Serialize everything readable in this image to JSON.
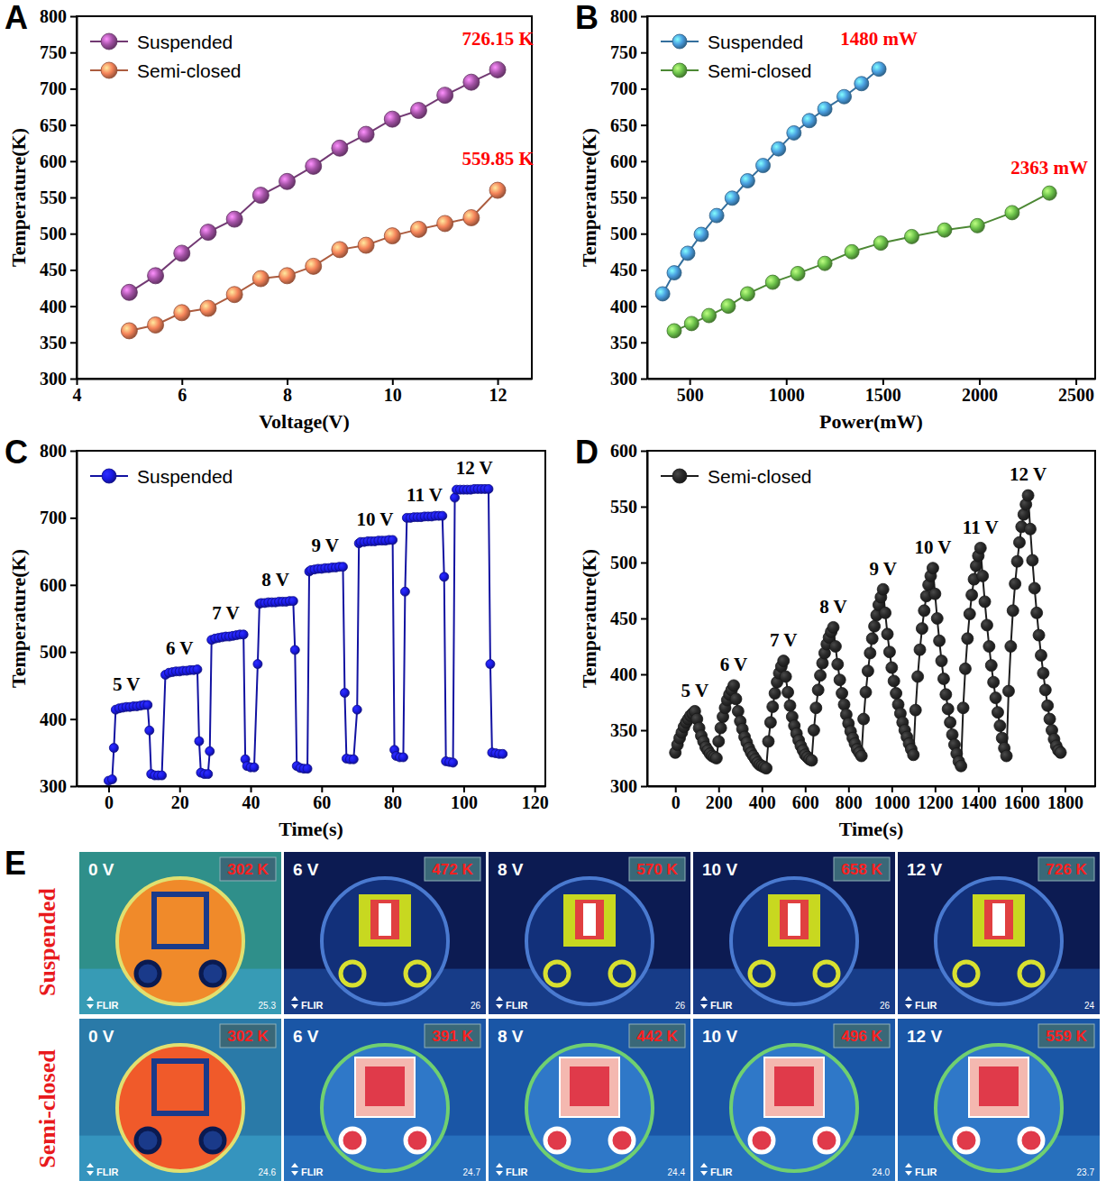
{
  "chart_data": [
    {
      "panel": "A",
      "type": "line",
      "x_label": "Voltage(V)",
      "y_label": "Temperature(K)",
      "xlim": [
        4,
        12.65
      ],
      "xticks": [
        4,
        6,
        8,
        10,
        12
      ],
      "ylim": [
        300,
        800
      ],
      "yticks": [
        300,
        350,
        400,
        450,
        500,
        550,
        600,
        650,
        700,
        750,
        800
      ],
      "legend": "upper left",
      "marker": "circle",
      "x": [
        5,
        5.5,
        6,
        6.5,
        7,
        7.5,
        8,
        8.5,
        9,
        9.5,
        10,
        10.5,
        11,
        11.5,
        12
      ],
      "series": [
        {
          "name": "Suspended",
          "color": "#a352a5",
          "values": [
            419,
            442,
            473,
            502,
            520,
            553,
            572,
            593,
            618,
            637,
            658,
            670,
            691,
            709,
            726.15
          ]
        },
        {
          "name": "Semi-closed",
          "color": "#f5845a",
          "values": [
            366,
            374,
            391,
            397,
            416,
            438,
            442,
            455,
            478,
            484,
            497,
            506,
            514,
            522,
            559.85
          ]
        }
      ],
      "annotations": [
        {
          "text": "726.15 K",
          "x": 12,
          "y": 760,
          "color": "#ff0000"
        },
        {
          "text": "559.85 K",
          "x": 12,
          "y": 595,
          "color": "#ff0000"
        }
      ]
    },
    {
      "panel": "B",
      "type": "line",
      "x_label": "Power(mW)",
      "y_label": "Temperature(K)",
      "xlim": [
        280,
        2600
      ],
      "xticks": [
        500,
        1000,
        1500,
        2000,
        2500
      ],
      "ylim": [
        300,
        800
      ],
      "yticks": [
        300,
        350,
        400,
        450,
        500,
        550,
        600,
        650,
        700,
        750,
        800
      ],
      "legend": "upper left",
      "marker": "circle",
      "series": [
        {
          "name": "Suspended",
          "color": "#4a9fe0",
          "x": [
            360,
            420,
            490,
            560,
            640,
            720,
            800,
            880,
            960,
            1040,
            1120,
            1200,
            1300,
            1390,
            1480
          ],
          "values": [
            417,
            446,
            473,
            499,
            525,
            549,
            573,
            594,
            617,
            639,
            656,
            672,
            689,
            707,
            727
          ]
        },
        {
          "name": "Semi-closed",
          "color": "#6cc24a",
          "x": [
            420,
            510,
            600,
            700,
            800,
            930,
            1060,
            1200,
            1340,
            1490,
            1650,
            1820,
            1990,
            2170,
            2363
          ],
          "values": [
            366,
            376,
            387,
            400,
            417,
            433,
            445,
            459,
            475,
            487,
            496,
            505,
            511,
            529,
            556
          ]
        }
      ],
      "annotations": [
        {
          "text": "1480 mW",
          "x": 1480,
          "y": 760,
          "color": "#ff0000"
        },
        {
          "text": "2363 mW",
          "x": 2363,
          "y": 582,
          "color": "#ff0000"
        }
      ]
    },
    {
      "panel": "C",
      "type": "line",
      "x_label": "Time(s)",
      "y_label": "Temperature(K)",
      "xlim": [
        -9,
        123
      ],
      "xticks": [
        0,
        20,
        40,
        60,
        80,
        100,
        120
      ],
      "ylim": [
        300,
        800
      ],
      "yticks": [
        300,
        400,
        500,
        600,
        700,
        800
      ],
      "legend": "upper left",
      "marker": "circle",
      "series": [
        {
          "name": "Suspended",
          "color": "#1a1ae6",
          "x": [
            0,
            1,
            1.5,
            2,
            3,
            4,
            5,
            6,
            7,
            8,
            9,
            10,
            11,
            11.5,
            12,
            13,
            14,
            15,
            16,
            17,
            18,
            19,
            20,
            21,
            22,
            23,
            24,
            25,
            25.5,
            26,
            27,
            28,
            28.5,
            29,
            30,
            31,
            32,
            33,
            34,
            35,
            36,
            37,
            38,
            38.5,
            39,
            40,
            41,
            42,
            42.5,
            43,
            44,
            45,
            46,
            47,
            48,
            49,
            50,
            51,
            52,
            52.5,
            53,
            54,
            55,
            56,
            56.5,
            57,
            58,
            59,
            60,
            61,
            62,
            63,
            64,
            65,
            66,
            66.5,
            67,
            68,
            69,
            70,
            70.5,
            71,
            72,
            73,
            74,
            75,
            76,
            77,
            78,
            79,
            80,
            80.5,
            81,
            82,
            83,
            83.5,
            84,
            85,
            86,
            87,
            88,
            89,
            90,
            91,
            92,
            93,
            94,
            94.5,
            95,
            96,
            97,
            97.5,
            98,
            99,
            100,
            101,
            102,
            103,
            104,
            105,
            106,
            107,
            107.5,
            108,
            109,
            110,
            111
          ],
          "values": [
            308,
            310,
            357,
            414,
            416,
            417,
            418,
            418,
            419,
            419,
            420,
            421,
            421,
            383,
            318,
            316,
            316,
            316,
            466,
            469,
            470,
            471,
            471,
            472,
            472,
            473,
            473,
            474,
            367,
            320,
            318,
            318,
            352,
            518,
            520,
            521,
            522,
            523,
            523,
            524,
            525,
            526,
            526,
            340,
            330,
            328,
            328,
            482,
            572,
            573,
            573,
            574,
            574,
            574,
            575,
            575,
            575,
            576,
            576,
            503,
            330,
            327,
            326,
            326,
            620,
            622,
            623,
            624,
            624,
            625,
            625,
            626,
            626,
            627,
            627,
            439,
            341,
            340,
            340,
            414,
            662,
            664,
            664,
            665,
            665,
            665,
            666,
            666,
            666,
            667,
            667,
            354,
            345,
            343,
            343,
            590,
            700,
            700,
            701,
            701,
            701,
            702,
            702,
            702,
            703,
            703,
            703,
            612,
            337,
            336,
            335,
            730,
            742,
            742,
            742,
            742,
            742,
            743,
            743,
            743,
            743,
            743,
            482,
            350,
            349,
            348,
            348
          ]
        }
      ],
      "annotations": [
        {
          "text": "5 V",
          "x": 5,
          "y": 443,
          "color": "#000000"
        },
        {
          "text": "6 V",
          "x": 20,
          "y": 496,
          "color": "#000000"
        },
        {
          "text": "7 V",
          "x": 33,
          "y": 548,
          "color": "#000000"
        },
        {
          "text": "8 V",
          "x": 47,
          "y": 598,
          "color": "#000000"
        },
        {
          "text": "9 V",
          "x": 61,
          "y": 649,
          "color": "#000000"
        },
        {
          "text": "10 V",
          "x": 75,
          "y": 689,
          "color": "#000000"
        },
        {
          "text": "11 V",
          "x": 89,
          "y": 725,
          "color": "#000000"
        },
        {
          "text": "12 V",
          "x": 103,
          "y": 765,
          "color": "#000000"
        }
      ]
    },
    {
      "panel": "D",
      "type": "line",
      "x_label": "Time(s)",
      "y_label": "Temperature(K)",
      "xlim": [
        -130,
        1940
      ],
      "xticks": [
        0,
        200,
        400,
        600,
        800,
        1000,
        1200,
        1400,
        1600,
        1800
      ],
      "ylim": [
        300,
        600
      ],
      "yticks": [
        300,
        350,
        400,
        450,
        500,
        550,
        600
      ],
      "legend": "upper left",
      "marker": "circle",
      "series": [
        {
          "name": "Semi-closed",
          "color": "#2a2a2a",
          "x": [
            0,
            10,
            20,
            30,
            40,
            50,
            60,
            70,
            80,
            90,
            100,
            110,
            120,
            130,
            140,
            150,
            160,
            170,
            180,
            190,
            200,
            210,
            220,
            230,
            240,
            250,
            260,
            270,
            280,
            290,
            300,
            310,
            320,
            330,
            340,
            350,
            360,
            370,
            380,
            390,
            400,
            410,
            420,
            430,
            440,
            450,
            460,
            470,
            480,
            490,
            500,
            510,
            520,
            530,
            540,
            550,
            560,
            570,
            580,
            590,
            600,
            610,
            620,
            630,
            640,
            650,
            660,
            670,
            680,
            690,
            700,
            710,
            720,
            730,
            740,
            750,
            760,
            770,
            780,
            790,
            800,
            810,
            820,
            830,
            840,
            850,
            860,
            870,
            880,
            890,
            900,
            910,
            920,
            930,
            940,
            950,
            960,
            970,
            980,
            990,
            1000,
            1010,
            1020,
            1030,
            1040,
            1050,
            1060,
            1070,
            1080,
            1090,
            1100,
            1110,
            1120,
            1130,
            1140,
            1150,
            1160,
            1170,
            1180,
            1190,
            1200,
            1210,
            1220,
            1230,
            1240,
            1250,
            1260,
            1270,
            1280,
            1290,
            1300,
            1310,
            1320,
            1330,
            1340,
            1350,
            1360,
            1370,
            1380,
            1390,
            1400,
            1410,
            1420,
            1430,
            1440,
            1450,
            1460,
            1470,
            1480,
            1490,
            1500,
            1510,
            1520,
            1530,
            1540,
            1550,
            1560,
            1570,
            1580,
            1590,
            1600,
            1610,
            1620,
            1630,
            1640,
            1650,
            1660,
            1670,
            1680,
            1690,
            1700,
            1710,
            1720,
            1730,
            1740,
            1750,
            1760,
            1770,
            1780
          ],
          "values": [
            330,
            337,
            343,
            348,
            353,
            357,
            360,
            363,
            365,
            367,
            360,
            352,
            345,
            340,
            335,
            332,
            329,
            327,
            326,
            325,
            340,
            352,
            362,
            370,
            377,
            382,
            386,
            390,
            378,
            367,
            358,
            351,
            344,
            339,
            334,
            330,
            327,
            324,
            321,
            319,
            318,
            317,
            316,
            340,
            357,
            371,
            383,
            393,
            401,
            407,
            412,
            398,
            384,
            372,
            362,
            354,
            347,
            341,
            336,
            332,
            328,
            326,
            324,
            323,
            350,
            370,
            386,
            399,
            410,
            419,
            427,
            433,
            438,
            442,
            425,
            409,
            395,
            383,
            373,
            364,
            356,
            349,
            343,
            338,
            333,
            330,
            327,
            360,
            384,
            403,
            419,
            432,
            443,
            453,
            462,
            469,
            476,
            455,
            436,
            420,
            406,
            394,
            383,
            373,
            365,
            357,
            350,
            344,
            338,
            333,
            328,
            368,
            398,
            422,
            441,
            457,
            470,
            480,
            488,
            495,
            472,
            450,
            430,
            412,
            396,
            382,
            369,
            357,
            346,
            337,
            329,
            322,
            318,
            370,
            405,
            432,
            454,
            471,
            485,
            497,
            506,
            513,
            488,
            465,
            444,
            425,
            408,
            393,
            379,
            366,
            354,
            343,
            334,
            327,
            385,
            425,
            457,
            481,
            501,
            518,
            532,
            543,
            552,
            560,
            530,
            502,
            477,
            455,
            435,
            417,
            401,
            386,
            372,
            360,
            350,
            342,
            336,
            332,
            330
          ]
        }
      ],
      "annotations": [
        {
          "text": "5 V",
          "x": 90,
          "y": 380,
          "color": "#000000"
        },
        {
          "text": "6 V",
          "x": 270,
          "y": 403,
          "color": "#000000"
        },
        {
          "text": "7 V",
          "x": 500,
          "y": 425,
          "color": "#000000"
        },
        {
          "text": "8 V",
          "x": 730,
          "y": 455,
          "color": "#000000"
        },
        {
          "text": "9 V",
          "x": 960,
          "y": 489,
          "color": "#000000"
        },
        {
          "text": "10 V",
          "x": 1190,
          "y": 508,
          "color": "#000000"
        },
        {
          "text": "11 V",
          "x": 1410,
          "y": 526,
          "color": "#000000"
        },
        {
          "text": "12 V",
          "x": 1630,
          "y": 573,
          "color": "#000000"
        }
      ]
    }
  ],
  "thermal_images": {
    "panel": "E",
    "brand": "FLIR",
    "rows": [
      {
        "label": "Suspended",
        "frames": [
          {
            "voltage": "0 V",
            "temperature": "302 K",
            "reading": "25.3"
          },
          {
            "voltage": "6 V",
            "temperature": "472 K",
            "reading": "26"
          },
          {
            "voltage": "8 V",
            "temperature": "570 K",
            "reading": "26"
          },
          {
            "voltage": "10 V",
            "temperature": "658 K",
            "reading": "26"
          },
          {
            "voltage": "12 V",
            "temperature": "726 K",
            "reading": "24"
          }
        ]
      },
      {
        "label": "Semi-closed",
        "frames": [
          {
            "voltage": "0 V",
            "temperature": "302 K",
            "reading": "24.6"
          },
          {
            "voltage": "6 V",
            "temperature": "391 K",
            "reading": "24.7"
          },
          {
            "voltage": "8 V",
            "temperature": "442 K",
            "reading": "24.4"
          },
          {
            "voltage": "10 V",
            "temperature": "496 K",
            "reading": "24.0"
          },
          {
            "voltage": "12 V",
            "temperature": "559 K",
            "reading": "23.7"
          }
        ]
      }
    ]
  }
}
